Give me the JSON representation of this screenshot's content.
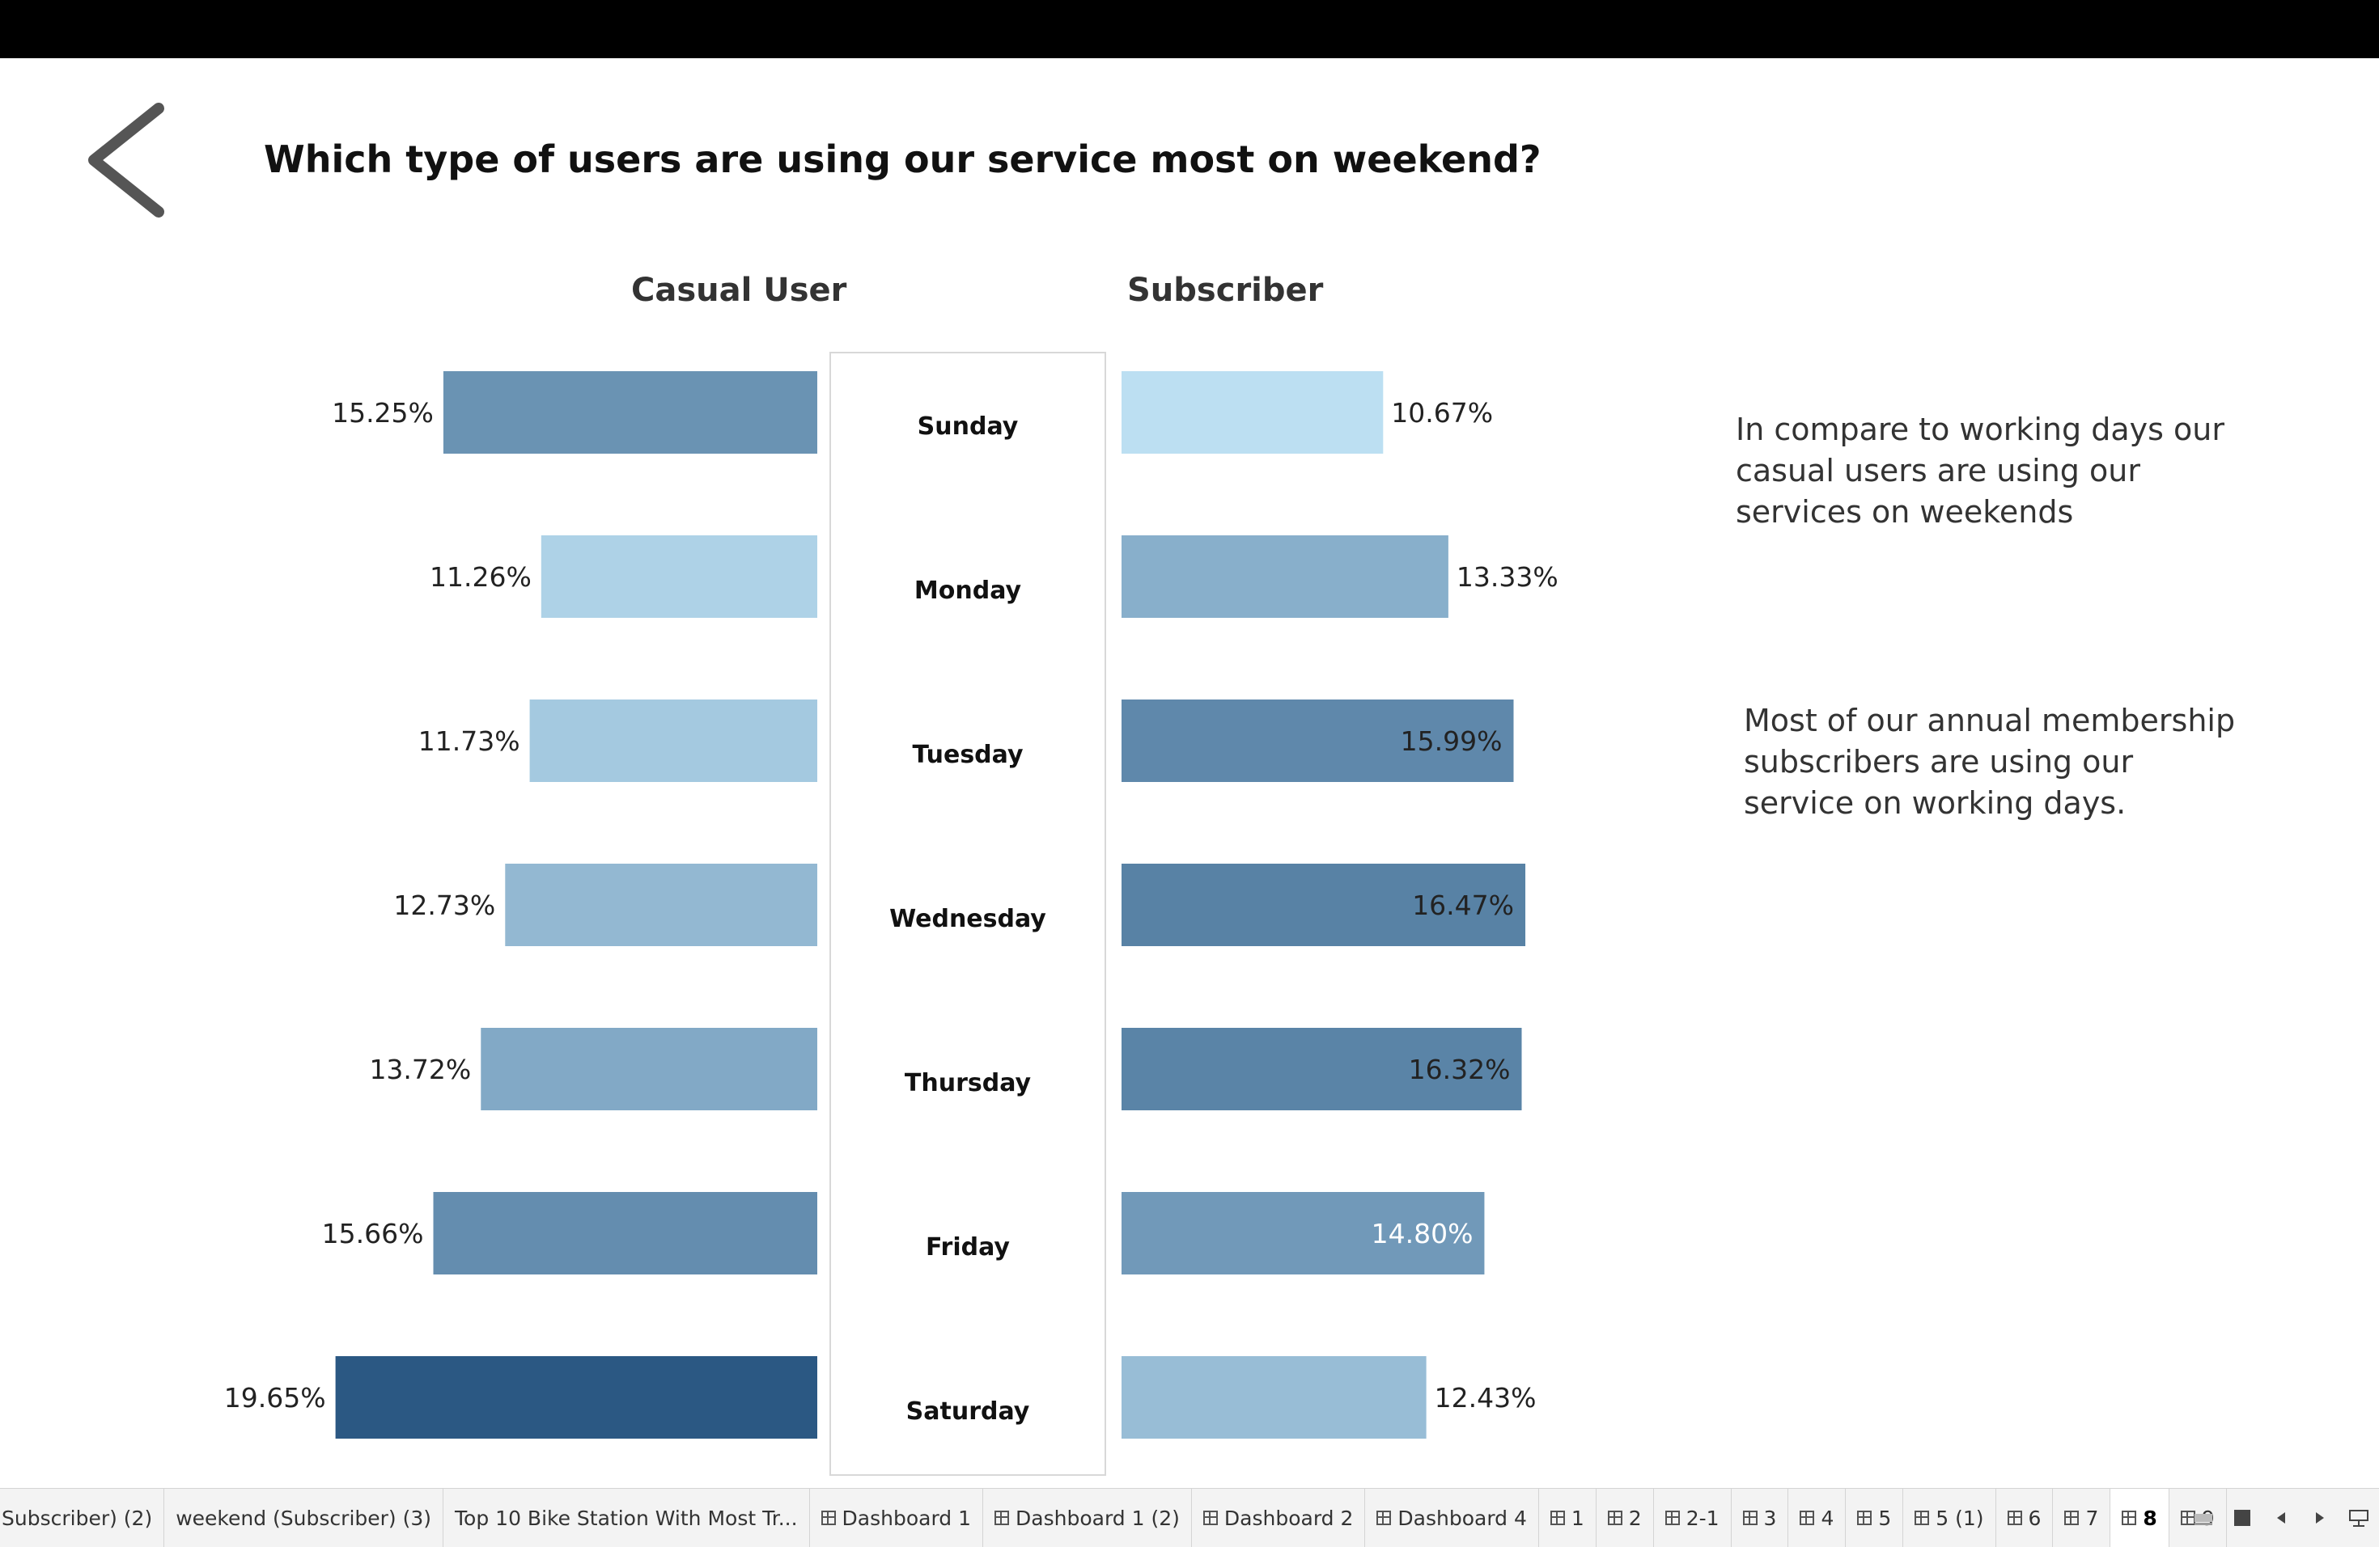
{
  "title": "Which type of users are using our service most on weekend?",
  "headers": {
    "left": "Casual User",
    "right": "Subscriber"
  },
  "notes": [
    "In compare to working days our casual users are using our services on weekends",
    "Most of our annual membership subscribers are using our service on working days."
  ],
  "chart_data": {
    "type": "bar",
    "categories": [
      "Sunday",
      "Monday",
      "Tuesday",
      "Wednesday",
      "Thursday",
      "Friday",
      "Saturday"
    ],
    "series": [
      {
        "name": "Casual User",
        "values": [
          15.25,
          11.26,
          11.73,
          12.73,
          13.72,
          15.66,
          19.65
        ],
        "labels": [
          "15.25%",
          "11.26%",
          "11.73%",
          "12.73%",
          "13.72%",
          "15.66%",
          "19.65%"
        ]
      },
      {
        "name": "Subscriber",
        "values": [
          10.67,
          13.33,
          15.99,
          16.47,
          16.32,
          14.8,
          12.43
        ],
        "labels": [
          "10.67%",
          "13.33%",
          "15.99%",
          "16.47%",
          "16.32%",
          "14.80%",
          "12.43%"
        ]
      }
    ],
    "unit": "%",
    "color_scale": {
      "low": "#bcdff2",
      "high": "#2b5883"
    }
  },
  "tabs": [
    "Subscriber) (2)",
    "weekend (Subscriber) (3)",
    "Top 10 Bike Station With Most Tr...",
    "Dashboard 1",
    "Dashboard 1 (2)",
    "Dashboard 2",
    "Dashboard 4",
    "1",
    "2",
    "2-1",
    "3",
    "4",
    "5",
    "5 (1)",
    "6",
    "7",
    "8",
    "9"
  ],
  "active_tab": "8",
  "icons": {
    "back": "chevron-left-icon"
  }
}
